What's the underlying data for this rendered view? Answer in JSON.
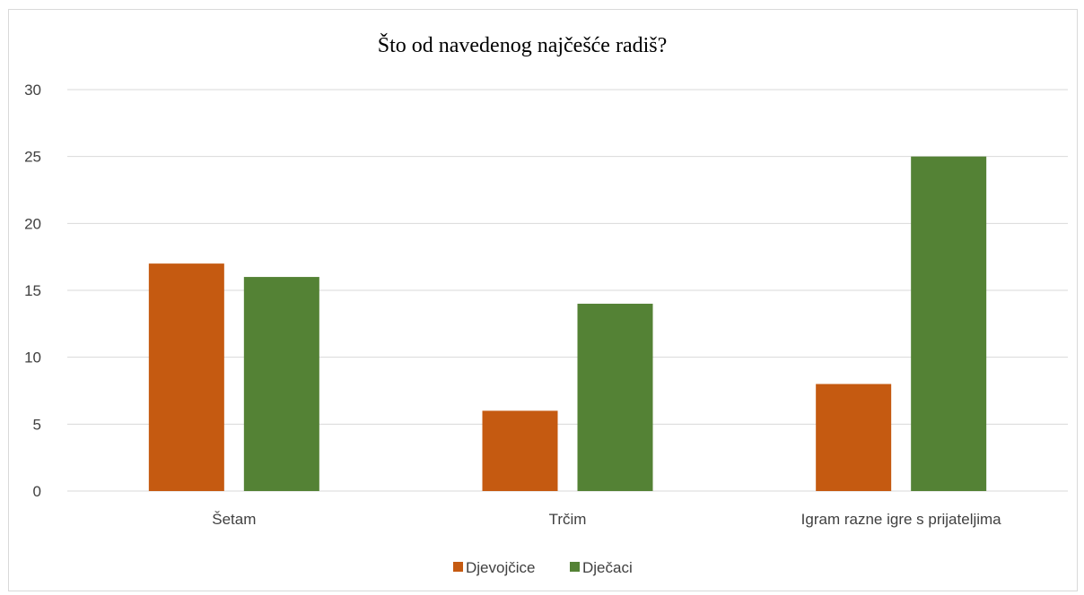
{
  "chart_data": {
    "type": "bar",
    "title": "Što od navedenog najčešće radiš?",
    "categories": [
      "Šetam",
      "Trčim",
      "Igram razne igre s prijateljima"
    ],
    "series": [
      {
        "name": "Djevojčice",
        "values": [
          17,
          6,
          8
        ],
        "color": "#c55a11"
      },
      {
        "name": "Dječaci",
        "values": [
          16,
          14,
          25
        ],
        "color": "#548235"
      }
    ],
    "ylim": [
      0,
      30
    ],
    "yticks": [
      "0",
      "5",
      "10",
      "15",
      "20",
      "25",
      "30"
    ],
    "grid": true,
    "legend_position": "bottom"
  }
}
